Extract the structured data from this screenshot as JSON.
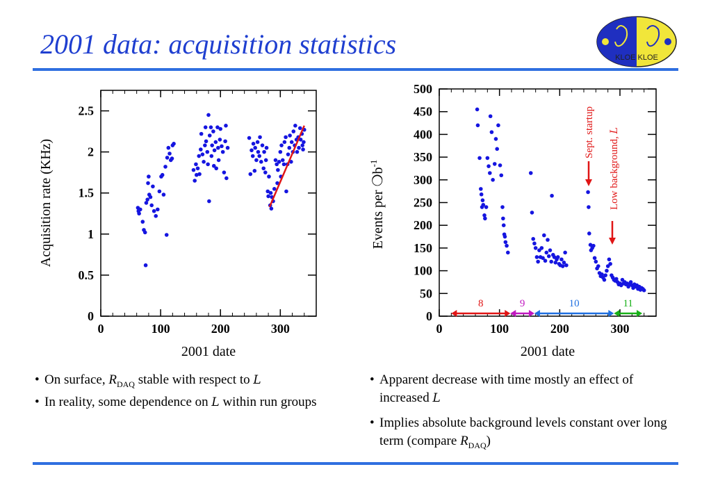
{
  "slide": {
    "title": "2001 data: acquisition statistics"
  },
  "colors": {
    "accent": "#1f3fd0",
    "rule": "#2f6fe0",
    "points": "#1515e0",
    "fit": "#e01515"
  },
  "logo": {
    "icon": "kloe-logo",
    "text": "KLOE KLOE"
  },
  "chart_data": [
    {
      "type": "scatter",
      "title": "",
      "xlabel": "2001 date",
      "ylabel": "Acquisition rate (KHz)",
      "xlim": [
        0,
        360
      ],
      "ylim": [
        0,
        2.75
      ],
      "xticks": [
        "0",
        "100",
        "200",
        "300"
      ],
      "yticks": [
        "0",
        "0.5",
        "1",
        "1.5",
        "2",
        "2.5"
      ],
      "series": [
        {
          "points": [
            [
              62,
              1.32
            ],
            [
              63,
              1.28
            ],
            [
              64,
              1.25
            ],
            [
              66,
              1.3
            ],
            [
              70,
              1.15
            ],
            [
              72,
              1.05
            ],
            [
              74,
              1.02
            ],
            [
              75,
              0.62
            ],
            [
              76,
              1.38
            ],
            [
              78,
              1.42
            ],
            [
              79,
              1.62
            ],
            [
              80,
              1.7
            ],
            [
              81,
              1.48
            ],
            [
              83,
              1.45
            ],
            [
              85,
              1.35
            ],
            [
              87,
              1.58
            ],
            [
              89,
              1.28
            ],
            [
              92,
              1.22
            ],
            [
              95,
              1.3
            ],
            [
              98,
              1.52
            ],
            [
              101,
              1.7
            ],
            [
              103,
              1.72
            ],
            [
              105,
              1.48
            ],
            [
              108,
              1.82
            ],
            [
              110,
              0.99
            ],
            [
              111,
              1.93
            ],
            [
              113,
              2.05
            ],
            [
              115,
              1.98
            ],
            [
              117,
              1.9
            ],
            [
              119,
              1.92
            ],
            [
              120,
              2.08
            ],
            [
              122,
              2.1
            ],
            [
              155,
              1.78
            ],
            [
              157,
              1.65
            ],
            [
              159,
              1.85
            ],
            [
              160,
              1.72
            ],
            [
              162,
              1.8
            ],
            [
              164,
              1.95
            ],
            [
              165,
              1.73
            ],
            [
              167,
              2.03
            ],
            [
              168,
              2.22
            ],
            [
              170,
              1.97
            ],
            [
              172,
              1.88
            ],
            [
              174,
              2.08
            ],
            [
              175,
              2.3
            ],
            [
              176,
              2.13
            ],
            [
              178,
              2.0
            ],
            [
              179,
              1.85
            ],
            [
              180,
              2.45
            ],
            [
              181,
              1.4
            ],
            [
              182,
              2.2
            ],
            [
              184,
              2.3
            ],
            [
              185,
              1.95
            ],
            [
              186,
              2.08
            ],
            [
              188,
              2.25
            ],
            [
              189,
              1.83
            ],
            [
              190,
              2.02
            ],
            [
              192,
              2.12
            ],
            [
              193,
              1.8
            ],
            [
              195,
              2.3
            ],
            [
              196,
              2.05
            ],
            [
              197,
              1.9
            ],
            [
              199,
              2.15
            ],
            [
              200,
              2.28
            ],
            [
              202,
              2.07
            ],
            [
              204,
              2.0
            ],
            [
              206,
              1.75
            ],
            [
              208,
              2.13
            ],
            [
              209,
              2.32
            ],
            [
              210,
              1.68
            ],
            [
              212,
              2.05
            ],
            [
              248,
              2.17
            ],
            [
              250,
              1.73
            ],
            [
              252,
              2.02
            ],
            [
              254,
              1.95
            ],
            [
              255,
              2.1
            ],
            [
              257,
              1.77
            ],
            [
              258,
              2.05
            ],
            [
              260,
              1.9
            ],
            [
              262,
              2.12
            ],
            [
              263,
              2.0
            ],
            [
              265,
              1.95
            ],
            [
              266,
              2.18
            ],
            [
              268,
              1.88
            ],
            [
              270,
              2.08
            ],
            [
              272,
              1.8
            ],
            [
              273,
              2.0
            ],
            [
              275,
              1.75
            ],
            [
              276,
              1.9
            ],
            [
              277,
              2.05
            ],
            [
              279,
              1.52
            ],
            [
              280,
              1.46
            ],
            [
              281,
              1.7
            ],
            [
              283,
              1.35
            ],
            [
              284,
              1.5
            ],
            [
              285,
              1.31
            ],
            [
              286,
              1.45
            ],
            [
              288,
              1.4
            ],
            [
              290,
              1.55
            ],
            [
              292,
              1.9
            ],
            [
              294,
              1.85
            ],
            [
              295,
              1.62
            ],
            [
              296,
              1.78
            ],
            [
              298,
              1.88
            ],
            [
              300,
              2.0
            ],
            [
              301,
              1.7
            ],
            [
              302,
              2.08
            ],
            [
              304,
              1.9
            ],
            [
              306,
              1.85
            ],
            [
              307,
              2.12
            ],
            [
              309,
              2.18
            ],
            [
              310,
              1.52
            ],
            [
              312,
              1.85
            ],
            [
              313,
              1.97
            ],
            [
              315,
              2.05
            ],
            [
              316,
              2.2
            ],
            [
              318,
              1.88
            ],
            [
              319,
              2.12
            ],
            [
              321,
              2.0
            ],
            [
              322,
              2.25
            ],
            [
              324,
              2.08
            ],
            [
              325,
              2.32
            ],
            [
              327,
              2.15
            ],
            [
              328,
              2.0
            ],
            [
              330,
              2.18
            ],
            [
              331,
              2.05
            ],
            [
              333,
              2.29
            ],
            [
              334,
              2.15
            ],
            [
              336,
              2.22
            ],
            [
              337,
              2.08
            ],
            [
              338,
              2.03
            ],
            [
              339,
              2.12
            ],
            [
              340,
              2.27
            ]
          ]
        }
      ],
      "fit_line": [
        [
          282,
          1.33
        ],
        [
          340,
          2.32
        ]
      ]
    },
    {
      "type": "scatter",
      "title": "",
      "xlabel": "2001 date",
      "ylabel_main": "Events per ",
      "ylabel_tail": "b",
      "ylabel_sup": "-1",
      "xlim": [
        0,
        360
      ],
      "ylim": [
        0,
        500
      ],
      "xticks": [
        "0",
        "100",
        "200",
        "300"
      ],
      "yticks": [
        "0",
        "50",
        "100",
        "150",
        "200",
        "250",
        "300",
        "350",
        "400",
        "450",
        "500"
      ],
      "series": [
        {
          "points": [
            [
              63,
              455
            ],
            [
              64,
              420
            ],
            [
              67,
              348
            ],
            [
              69,
              280
            ],
            [
              70,
              268
            ],
            [
              71,
              240
            ],
            [
              72,
              255
            ],
            [
              73,
              245
            ],
            [
              75,
              222
            ],
            [
              76,
              215
            ],
            [
              78,
              240
            ],
            [
              80,
              348
            ],
            [
              82,
              330
            ],
            [
              84,
              315
            ],
            [
              85,
              440
            ],
            [
              87,
              405
            ],
            [
              89,
              300
            ],
            [
              92,
              335
            ],
            [
              94,
              390
            ],
            [
              96,
              368
            ],
            [
              98,
              420
            ],
            [
              101,
              332
            ],
            [
              103,
              310
            ],
            [
              105,
              240
            ],
            [
              106,
              215
            ],
            [
              107,
              200
            ],
            [
              108,
              180
            ],
            [
              109,
              175
            ],
            [
              110,
              163
            ],
            [
              112,
              155
            ],
            [
              114,
              140
            ],
            [
              152,
              315
            ],
            [
              154,
              228
            ],
            [
              156,
              170
            ],
            [
              158,
              160
            ],
            [
              160,
              150
            ],
            [
              162,
              130
            ],
            [
              164,
              120
            ],
            [
              166,
              145
            ],
            [
              168,
              130
            ],
            [
              170,
              150
            ],
            [
              172,
              128
            ],
            [
              174,
              178
            ],
            [
              176,
              122
            ],
            [
              178,
              140
            ],
            [
              180,
              168
            ],
            [
              182,
              132
            ],
            [
              184,
              145
            ],
            [
              186,
              120
            ],
            [
              187,
              265
            ],
            [
              189,
              135
            ],
            [
              191,
              130
            ],
            [
              193,
              118
            ],
            [
              195,
              125
            ],
            [
              197,
              130
            ],
            [
              199,
              115
            ],
            [
              201,
              112
            ],
            [
              203,
              125
            ],
            [
              205,
              110
            ],
            [
              207,
              118
            ],
            [
              209,
              140
            ],
            [
              211,
              112
            ],
            [
              247,
              273
            ],
            [
              248,
              240
            ],
            [
              249,
              182
            ],
            [
              251,
              157
            ],
            [
              252,
              145
            ],
            [
              254,
              150
            ],
            [
              256,
              155
            ],
            [
              258,
              128
            ],
            [
              260,
              120
            ],
            [
              262,
              105
            ],
            [
              264,
              110
            ],
            [
              266,
              95
            ],
            [
              268,
              88
            ],
            [
              270,
              92
            ],
            [
              272,
              85
            ],
            [
              274,
              80
            ],
            [
              276,
              90
            ],
            [
              278,
              100
            ],
            [
              280,
              110
            ],
            [
              282,
              125
            ],
            [
              284,
              115
            ],
            [
              286,
              90
            ],
            [
              288,
              85
            ],
            [
              290,
              80
            ],
            [
              292,
              78
            ],
            [
              294,
              82
            ],
            [
              296,
              75
            ],
            [
              298,
              70
            ],
            [
              300,
              72
            ],
            [
              302,
              68
            ],
            [
              304,
              80
            ],
            [
              306,
              72
            ],
            [
              308,
              75
            ],
            [
              310,
              70
            ],
            [
              312,
              72
            ],
            [
              314,
              65
            ],
            [
              316,
              70
            ],
            [
              318,
              75
            ],
            [
              320,
              68
            ],
            [
              322,
              62
            ],
            [
              324,
              70
            ],
            [
              326,
              65
            ],
            [
              328,
              68
            ],
            [
              330,
              60
            ],
            [
              332,
              65
            ],
            [
              334,
              58
            ],
            [
              336,
              62
            ],
            [
              338,
              60
            ],
            [
              340,
              57
            ]
          ]
        }
      ],
      "annotations": {
        "sept_startup": "Sept. startup",
        "low_background": "Low background, "
      },
      "run_groups": [
        {
          "label": "8",
          "x0": 20,
          "x1": 118,
          "color": "#e01515"
        },
        {
          "label": "9",
          "x0": 118,
          "x1": 158,
          "color": "#c018c0"
        },
        {
          "label": "10",
          "x0": 158,
          "x1": 290,
          "color": "#1f6fe0"
        },
        {
          "label": "11",
          "x0": 290,
          "x1": 337,
          "color": "#18b018"
        }
      ]
    }
  ],
  "bullets_left": [
    {
      "pre": "On surface, ",
      "sym": "R",
      "sub": "DAQ",
      "post": " stable with respect to ",
      "lum": "L"
    },
    {
      "pre": "In reality, some dependence on ",
      "lum": "L",
      "post": " within run groups"
    }
  ],
  "bullets_right": [
    {
      "pre": "Apparent decrease with time mostly an effect of increased ",
      "lum": "L"
    },
    {
      "pre": "Implies absolute background levels constant over long term (compare ",
      "sym": "R",
      "sub": "DAQ",
      "post": ")"
    }
  ]
}
